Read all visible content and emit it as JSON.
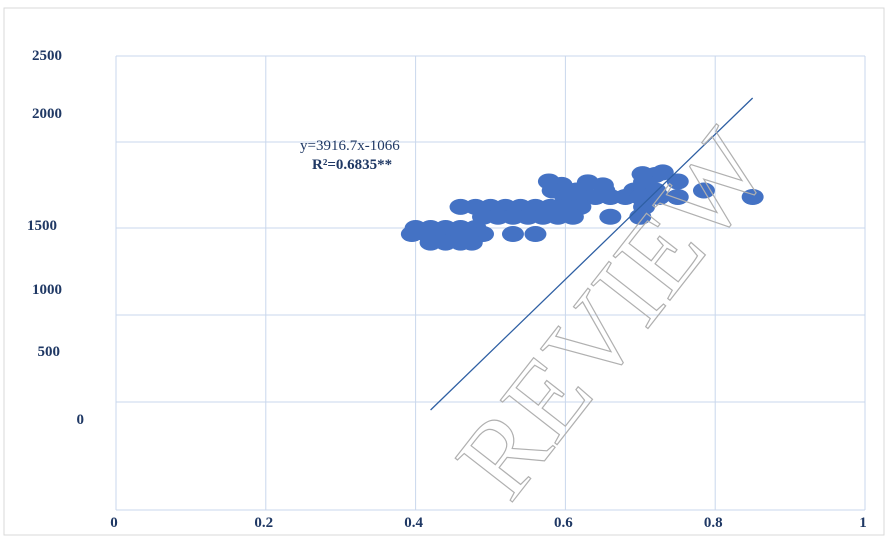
{
  "chart_data": {
    "type": "scatter",
    "xlim": [
      0,
      1
    ],
    "x_ticks": [
      "0",
      "0.2",
      "0.4",
      "0.6",
      "0.8",
      "1"
    ],
    "x_tick_values": [
      0,
      0.2,
      0.4,
      0.6,
      0.8,
      1
    ],
    "y_tick_labels": [
      "2500",
      "2000",
      "1500",
      "1000",
      "500",
      "0"
    ],
    "grid": true,
    "point_color": "#4472c4",
    "line_color": "#2e5fa3",
    "grid_color": "#c9d7ec",
    "trendline": {
      "equation": "y=3916.7x-1066",
      "r2": "R²=0.6835**",
      "x_range": [
        0.42,
        0.85
      ]
    },
    "series": [
      {
        "points": [
          [
            0.703,
            2125
          ],
          [
            0.73,
            2145
          ],
          [
            0.72,
            2115
          ],
          [
            0.578,
            2040
          ],
          [
            0.63,
            2030
          ],
          [
            0.705,
            2035
          ],
          [
            0.75,
            2040
          ],
          [
            0.595,
            2000
          ],
          [
            0.65,
            1995
          ],
          [
            0.583,
            1935
          ],
          [
            0.615,
            1935
          ],
          [
            0.622,
            1930
          ],
          [
            0.652,
            1935
          ],
          [
            0.692,
            1935
          ],
          [
            0.705,
            1935
          ],
          [
            0.72,
            1935
          ],
          [
            0.785,
            1935
          ],
          [
            0.715,
            1880
          ],
          [
            0.6,
            1860
          ],
          [
            0.62,
            1860
          ],
          [
            0.64,
            1860
          ],
          [
            0.66,
            1860
          ],
          [
            0.68,
            1860
          ],
          [
            0.7,
            1860
          ],
          [
            0.725,
            1860
          ],
          [
            0.75,
            1860
          ],
          [
            0.85,
            1860
          ],
          [
            0.46,
            1745
          ],
          [
            0.48,
            1745
          ],
          [
            0.5,
            1745
          ],
          [
            0.52,
            1745
          ],
          [
            0.54,
            1745
          ],
          [
            0.56,
            1745
          ],
          [
            0.58,
            1745
          ],
          [
            0.6,
            1745
          ],
          [
            0.62,
            1745
          ],
          [
            0.705,
            1745
          ],
          [
            0.49,
            1630
          ],
          [
            0.51,
            1630
          ],
          [
            0.53,
            1630
          ],
          [
            0.55,
            1630
          ],
          [
            0.57,
            1630
          ],
          [
            0.59,
            1630
          ],
          [
            0.61,
            1630
          ],
          [
            0.66,
            1630
          ],
          [
            0.7,
            1630
          ],
          [
            0.4,
            1500
          ],
          [
            0.42,
            1500
          ],
          [
            0.44,
            1500
          ],
          [
            0.46,
            1500
          ],
          [
            0.48,
            1500
          ],
          [
            0.395,
            1430
          ],
          [
            0.415,
            1430
          ],
          [
            0.435,
            1430
          ],
          [
            0.455,
            1430
          ],
          [
            0.475,
            1430
          ],
          [
            0.49,
            1430
          ],
          [
            0.53,
            1430
          ],
          [
            0.56,
            1430
          ],
          [
            0.42,
            1330
          ],
          [
            0.44,
            1330
          ],
          [
            0.46,
            1330
          ],
          [
            0.475,
            1330
          ]
        ]
      }
    ]
  },
  "watermark": "REVIEW"
}
